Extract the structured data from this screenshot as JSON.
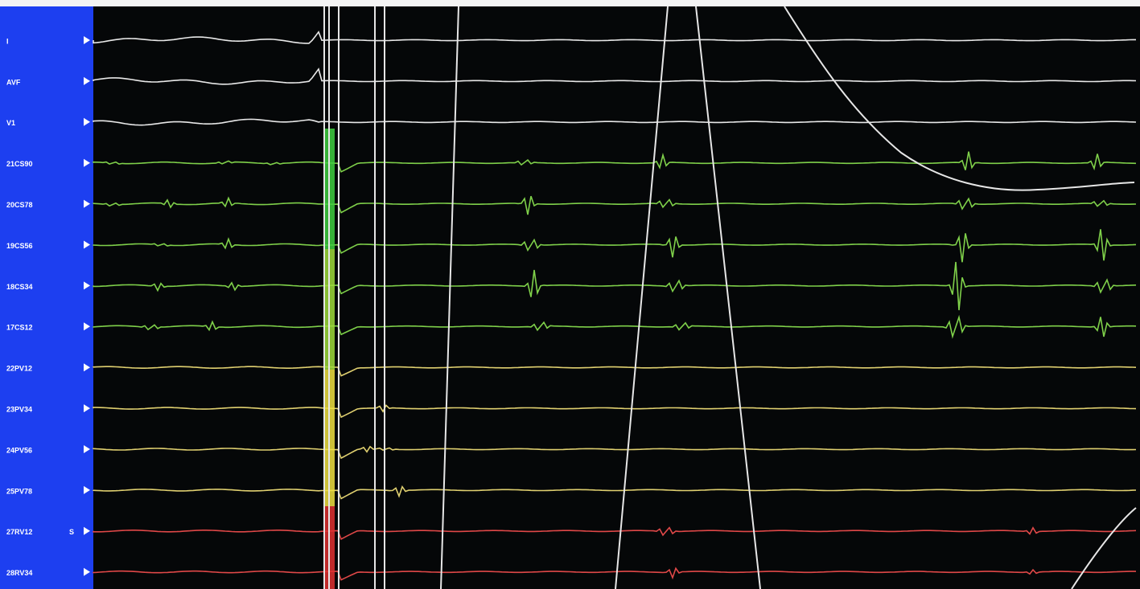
{
  "channels": [
    {
      "label": "I",
      "color": "#e8e8e8"
    },
    {
      "label": "AVF",
      "color": "#e8e8e8"
    },
    {
      "label": "V1",
      "color": "#e8e8e8"
    },
    {
      "label": "21CS90",
      "color": "#7fd04a"
    },
    {
      "label": "20CS78",
      "color": "#7fd04a"
    },
    {
      "label": "19CS56",
      "color": "#7fd04a"
    },
    {
      "label": "18CS34",
      "color": "#7fd04a"
    },
    {
      "label": "17CS12",
      "color": "#7fd04a"
    },
    {
      "label": "22PV12",
      "color": "#e0d070"
    },
    {
      "label": "23PV34",
      "color": "#e0d070"
    },
    {
      "label": "24PV56",
      "color": "#e0d070"
    },
    {
      "label": "25PV78",
      "color": "#e0d070"
    },
    {
      "label": "27RV12",
      "color": "#e04848",
      "marker": "S"
    },
    {
      "label": "28RV34",
      "color": "#e04848"
    }
  ]
}
